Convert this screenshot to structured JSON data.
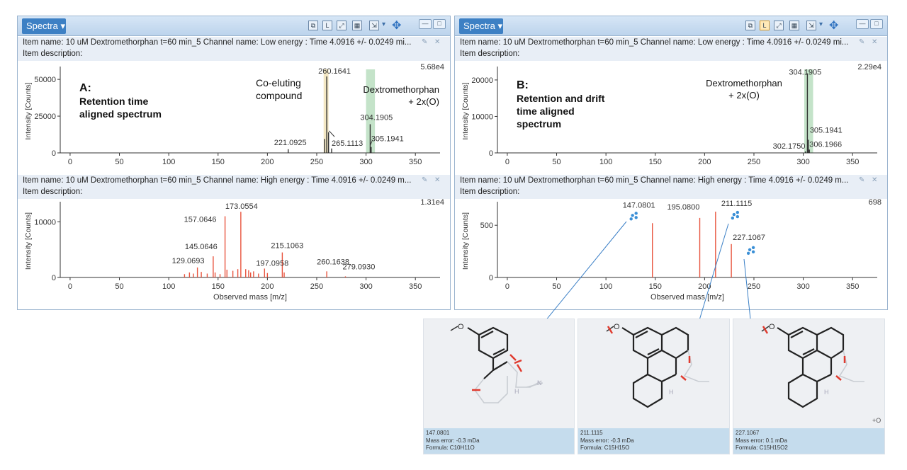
{
  "panels": [
    {
      "title": "Spectra",
      "label_letter": "A:",
      "label_lines": [
        "Retention time",
        "aligned spectrum"
      ],
      "low": {
        "item_line": "Item name: 10 uM Dextromethorphan t=60 min_5  Channel name: Low energy : Time 4.0916 +/- 0.0249 mi...",
        "desc_line": "Item description:",
        "max_label": "5.68e4",
        "y_ticks": [
          "0",
          "25000",
          "50000"
        ],
        "y_title": "Intensity [Counts]",
        "annotations": [
          {
            "lines": [
              "Co-eluting",
              "compound"
            ]
          },
          {
            "lines": [
              "Dextromethorphan",
              "+ 2x(O)"
            ]
          }
        ]
      },
      "high": {
        "item_line": "Item name: 10 uM Dextromethorphan t=60 min_5  Channel name: High energy : Time 4.0916 +/- 0.0249 m...",
        "desc_line": "Item description:",
        "max_label": "1.31e4",
        "y_ticks": [
          "0",
          "10000"
        ],
        "y_title": "Intensity [Counts]",
        "x_title": "Observed mass [m/z]"
      }
    },
    {
      "title": "Spectra",
      "label_letter": "B:",
      "label_lines": [
        "Retention and drift",
        "time aligned",
        "spectrum"
      ],
      "low": {
        "item_line": "Item name: 10 uM Dextromethorphan t=60 min_5  Channel name: Low energy : Time 4.0916 +/- 0.0249 mi...",
        "desc_line": "Item description:",
        "max_label": "2.29e4",
        "y_ticks": [
          "0",
          "10000",
          "20000"
        ],
        "y_title": "Intensity [Counts]",
        "annotations": [
          {
            "lines": [
              "Dextromethorphan",
              "+ 2x(O)"
            ]
          }
        ]
      },
      "high": {
        "item_line": "Item name: 10 uM Dextromethorphan t=60 min_5  Channel name: High energy : Time 4.0916 +/- 0.0249 m...",
        "desc_line": "Item description:",
        "max_label": "698",
        "y_ticks": [
          "0",
          "500"
        ],
        "y_title": "Intensity [Counts]",
        "x_title": "Observed mass [m/z]"
      }
    }
  ],
  "chart_data": [
    {
      "type": "bar",
      "name": "A-low",
      "xlim": [
        -10,
        375
      ],
      "ylim": [
        0,
        56800
      ],
      "x_ticks": [
        0,
        50,
        100,
        150,
        200,
        250,
        300,
        350
      ],
      "colors": {
        "default": "#333333",
        "highlight_coeluting": "#f3e7c3",
        "highlight_target": "#c4e3c9"
      },
      "highlight_bands": [
        {
          "x": [
            257,
            262
          ],
          "key": "highlight_coeluting"
        },
        {
          "x": [
            300,
            309
          ],
          "key": "highlight_target"
        }
      ],
      "peaks": [
        {
          "x": 221.0925,
          "y": 2500,
          "label": "221.0925"
        },
        {
          "x": 258.0,
          "y": 9500,
          "label": ""
        },
        {
          "x": 260.1641,
          "y": 52000,
          "label": "260.1641"
        },
        {
          "x": 262.0,
          "y": 14000,
          "label": ""
        },
        {
          "x": 265.1113,
          "y": 3000,
          "label": "265.1113"
        },
        {
          "x": 304.1905,
          "y": 19500,
          "label": "304.1905"
        },
        {
          "x": 305.1941,
          "y": 4000,
          "label": "305.1941"
        }
      ]
    },
    {
      "type": "bar",
      "name": "A-high",
      "xlim": [
        -10,
        375
      ],
      "ylim": [
        0,
        13100
      ],
      "x_ticks": [
        0,
        50,
        100,
        150,
        200,
        250,
        300,
        350
      ],
      "colors": {
        "default": "#e8553f"
      },
      "peaks": [
        {
          "x": 116,
          "y": 600,
          "label": ""
        },
        {
          "x": 121,
          "y": 900,
          "label": ""
        },
        {
          "x": 125,
          "y": 700,
          "label": ""
        },
        {
          "x": 129.0693,
          "y": 1800,
          "label": "129.0693"
        },
        {
          "x": 133,
          "y": 1000,
          "label": ""
        },
        {
          "x": 139,
          "y": 700,
          "label": ""
        },
        {
          "x": 145.0646,
          "y": 3800,
          "label": "145.0646"
        },
        {
          "x": 147,
          "y": 900,
          "label": ""
        },
        {
          "x": 152,
          "y": 600,
          "label": ""
        },
        {
          "x": 157.0646,
          "y": 11000,
          "label": "157.0646"
        },
        {
          "x": 159,
          "y": 1400,
          "label": ""
        },
        {
          "x": 165,
          "y": 1200,
          "label": ""
        },
        {
          "x": 170,
          "y": 1500,
          "label": ""
        },
        {
          "x": 173.0554,
          "y": 11800,
          "label": "173.0554"
        },
        {
          "x": 178,
          "y": 1500,
          "label": ""
        },
        {
          "x": 181,
          "y": 1300,
          "label": ""
        },
        {
          "x": 183,
          "y": 900,
          "label": ""
        },
        {
          "x": 186,
          "y": 1100,
          "label": ""
        },
        {
          "x": 191,
          "y": 700,
          "label": ""
        },
        {
          "x": 197.0958,
          "y": 1600,
          "label": "197.0958"
        },
        {
          "x": 200,
          "y": 800,
          "label": ""
        },
        {
          "x": 215.1063,
          "y": 4500,
          "label": "215.1063"
        },
        {
          "x": 217,
          "y": 900,
          "label": ""
        },
        {
          "x": 260.1638,
          "y": 1100,
          "label": "260.1638"
        },
        {
          "x": 279.093,
          "y": 200,
          "label": "279.0930"
        }
      ]
    },
    {
      "type": "bar",
      "name": "B-low",
      "xlim": [
        -10,
        375
      ],
      "ylim": [
        0,
        22900
      ],
      "x_ticks": [
        0,
        50,
        100,
        150,
        200,
        250,
        300,
        350
      ],
      "colors": {
        "default": "#333333",
        "highlight_target": "#c4e3c9"
      },
      "highlight_bands": [
        {
          "x": [
            301,
            310
          ],
          "key": "highlight_target"
        }
      ],
      "peaks": [
        {
          "x": 302.175,
          "y": 400,
          "label": "302.1750"
        },
        {
          "x": 304.1905,
          "y": 21800,
          "label": "304.1905"
        },
        {
          "x": 305.1941,
          "y": 3600,
          "label": "305.1941"
        },
        {
          "x": 306.1966,
          "y": 900,
          "label": "306.1966"
        }
      ]
    },
    {
      "type": "bar",
      "name": "B-high",
      "xlim": [
        -10,
        375
      ],
      "ylim": [
        0,
        698
      ],
      "x_ticks": [
        0,
        50,
        100,
        150,
        200,
        250,
        300,
        350
      ],
      "colors": {
        "default": "#e8553f",
        "fragment_icon": "#3a8fd6"
      },
      "peaks": [
        {
          "x": 147.0801,
          "y": 520,
          "label": "147.0801"
        },
        {
          "x": 195.08,
          "y": 570,
          "label": "195.0800"
        },
        {
          "x": 211.1115,
          "y": 630,
          "label": "211.1115"
        },
        {
          "x": 227.1067,
          "y": 320,
          "label": "227.1067"
        }
      ]
    }
  ],
  "structures": [
    {
      "mass": "147.0801",
      "error": "Mass error: -0.3 mDa",
      "formula": "Formula: C10H11O"
    },
    {
      "mass": "211.1115",
      "error": "Mass error: -0.3 mDa",
      "formula": "Formula: C15H15O"
    },
    {
      "mass": "227.1067",
      "error": "Mass error: 0.1 mDa",
      "formula": "Formula: C15H15O2",
      "extra": "+O"
    }
  ],
  "atom_labels": {
    "oxygen": "O",
    "nitrogen": "N",
    "hydrogen": "H"
  }
}
